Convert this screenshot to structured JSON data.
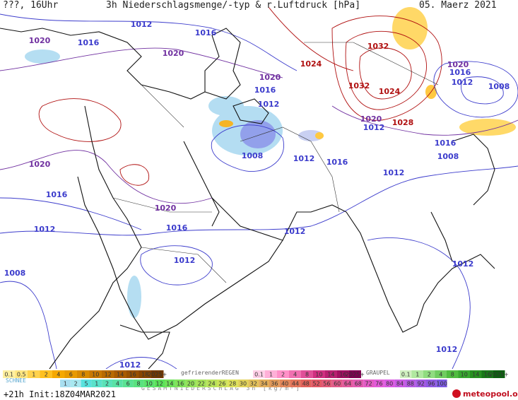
{
  "header": {
    "left": "???, 16Uhr",
    "title": "3h Niederschlagsmenge/-typ & r.Luftdruck [hPa]",
    "date": "05. Maerz 2021"
  },
  "isobar_labels": [
    "1012",
    "1016",
    "1020",
    "1016",
    "1020",
    "1032",
    "1024",
    "1020",
    "1016",
    "1032",
    "1024",
    "1020",
    "1016",
    "1012",
    "1008",
    "1012",
    "1020",
    "1012",
    "1028",
    "1016",
    "1008",
    "1008",
    "1012",
    "1016",
    "1012",
    "1020",
    "1016",
    "1020",
    "1016",
    "1012",
    "1012",
    "1012",
    "1008",
    "1012",
    "1012",
    "1012"
  ],
  "legend": {
    "rain": {
      "labels": [
        "0.1",
        "0.5",
        "1",
        "2",
        "4",
        "6",
        "8",
        "10",
        "12",
        "14",
        "16",
        "18",
        "2025+"
      ],
      "colors": [
        "#fff0a0",
        "#ffe680",
        "#ffd24d",
        "#ffc020",
        "#f5a800",
        "#e89a00",
        "#d88a00",
        "#c87800",
        "#b86a00",
        "#a85a00",
        "#985000",
        "#884400",
        "#703800"
      ]
    },
    "freezing_rain_label": "gefrierenderREGEN",
    "freezing_rain": {
      "labels": [
        "0.1",
        "1",
        "2",
        "4",
        "8",
        "10",
        "14",
        "16",
        "2025+"
      ],
      "colors": [
        "#ffd0e8",
        "#ffb0d8",
        "#ff90c8",
        "#f070b0",
        "#e05098",
        "#d03080",
        "#b82070",
        "#a01060",
        "#800050"
      ]
    },
    "graupel_label": "GRAUPEL",
    "graupel": {
      "labels": [
        "0.1",
        "1",
        "2",
        "4",
        "8",
        "10",
        "14",
        "16",
        "2025+"
      ],
      "colors": [
        "#d0f0c0",
        "#b0e8a0",
        "#90dc80",
        "#70cc60",
        "#50bc40",
        "#38a830",
        "#289020",
        "#187818",
        "#0c6010"
      ]
    },
    "snow_label": "SCHNEE",
    "total": {
      "labels": [
        "1",
        "2",
        "5",
        "1",
        "2",
        "4",
        "6",
        "8",
        "10",
        "12",
        "14",
        "16",
        "20",
        "22",
        "24",
        "26",
        "28",
        "30",
        "32",
        "34",
        "36",
        "40",
        "44",
        "48",
        "52",
        "56",
        "60",
        "64",
        "68",
        "72",
        "76",
        "80",
        "84",
        "88",
        "92",
        "96",
        "100"
      ]
    },
    "total_label": "GESAMTNIEDERSCHLAG 3h [kg/m²]"
  },
  "footer": {
    "run": "+21h Init:18Z04MAR2021",
    "brand": "meteopool.org"
  }
}
